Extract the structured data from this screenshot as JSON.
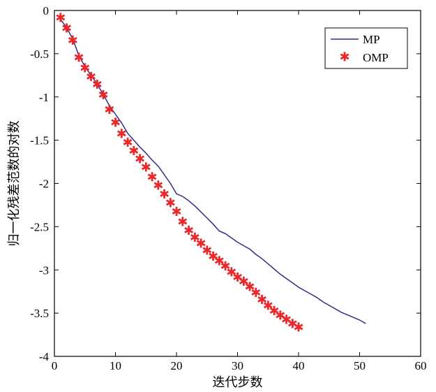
{
  "chart_data": {
    "type": "line",
    "title": "",
    "xlabel": "迭代步数",
    "ylabel": "归一化残差范数的对数",
    "xlim": [
      0,
      60
    ],
    "ylim": [
      -4,
      0
    ],
    "xticks": [
      0,
      10,
      20,
      30,
      40,
      50,
      60
    ],
    "yticks": [
      0,
      -0.5,
      -1,
      -1.5,
      -2,
      -2.5,
      -3,
      -3.5,
      -4
    ],
    "xtick_labels": [
      "0",
      "10",
      "20",
      "30",
      "40",
      "50",
      "60"
    ],
    "ytick_labels": [
      "0",
      "-0.5",
      "-1",
      "-1.5",
      "-2",
      "-2.5",
      "-3",
      "-3.5",
      "-4"
    ],
    "grid": false,
    "legend_position": "top-right",
    "series": [
      {
        "name": "MP",
        "style": "line",
        "color": "#2e2e8a",
        "x": [
          1,
          2,
          3,
          4,
          5,
          6,
          7,
          8,
          9,
          10,
          11,
          12,
          13,
          14,
          15,
          16,
          17,
          18,
          19,
          20,
          21,
          22,
          23,
          24,
          25,
          26,
          27,
          28,
          29,
          30,
          31,
          32,
          33,
          34,
          35,
          36,
          37,
          38,
          39,
          40,
          41,
          42,
          43,
          44,
          45,
          46,
          47,
          48,
          49,
          50,
          51
        ],
        "values": [
          -0.1,
          -0.2,
          -0.33,
          -0.52,
          -0.65,
          -0.75,
          -0.85,
          -0.97,
          -1.1,
          -1.2,
          -1.3,
          -1.42,
          -1.5,
          -1.58,
          -1.65,
          -1.73,
          -1.8,
          -1.9,
          -2.0,
          -2.12,
          -2.15,
          -2.2,
          -2.26,
          -2.33,
          -2.4,
          -2.47,
          -2.55,
          -2.58,
          -2.63,
          -2.68,
          -2.72,
          -2.76,
          -2.82,
          -2.87,
          -2.93,
          -2.99,
          -3.05,
          -3.1,
          -3.15,
          -3.2,
          -3.24,
          -3.28,
          -3.32,
          -3.37,
          -3.41,
          -3.45,
          -3.49,
          -3.52,
          -3.55,
          -3.58,
          -3.62
        ]
      },
      {
        "name": "OMP",
        "style": "marker",
        "marker": "*",
        "color": "#e8282b",
        "x": [
          1,
          2,
          3,
          4,
          5,
          6,
          7,
          8,
          9,
          10,
          11,
          12,
          13,
          14,
          15,
          16,
          17,
          18,
          19,
          20,
          21,
          22,
          23,
          24,
          25,
          26,
          27,
          28,
          29,
          30,
          31,
          32,
          33,
          34,
          35,
          36,
          37,
          38,
          39,
          40
        ],
        "values": [
          -0.09,
          -0.21,
          -0.35,
          -0.55,
          -0.67,
          -0.77,
          -0.86,
          -0.98,
          -1.15,
          -1.3,
          -1.43,
          -1.53,
          -1.63,
          -1.72,
          -1.82,
          -1.93,
          -2.03,
          -2.13,
          -2.23,
          -2.33,
          -2.45,
          -2.55,
          -2.63,
          -2.7,
          -2.78,
          -2.85,
          -2.9,
          -2.96,
          -3.03,
          -3.09,
          -3.14,
          -3.2,
          -3.27,
          -3.35,
          -3.42,
          -3.48,
          -3.53,
          -3.58,
          -3.63,
          -3.67
        ]
      }
    ]
  }
}
